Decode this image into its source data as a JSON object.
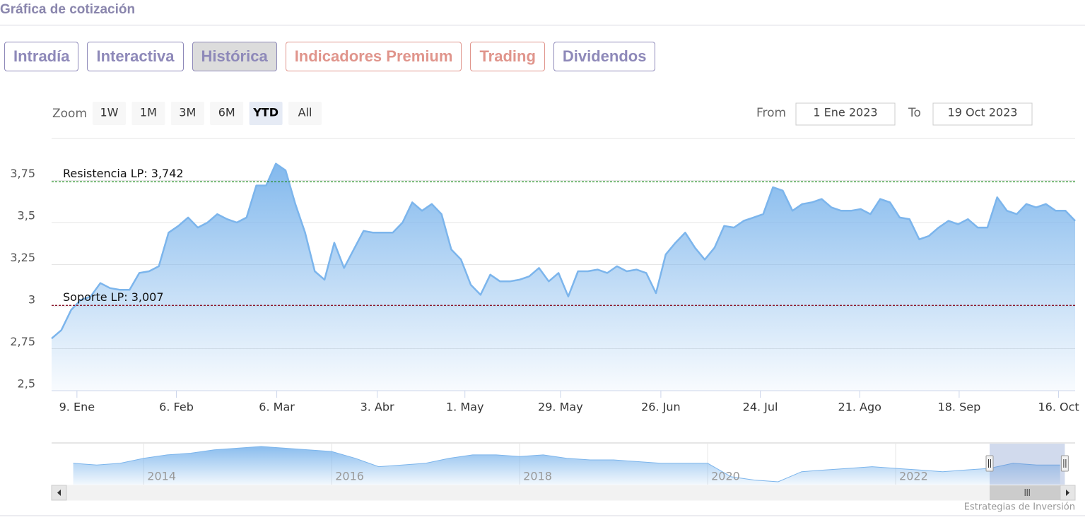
{
  "header": {
    "title": "Gráfica de cotización"
  },
  "tabs": [
    {
      "label": "Intradía",
      "color": "#8e89b9"
    },
    {
      "label": "Interactiva",
      "color": "#8e89b9"
    },
    {
      "label": "Histórica",
      "color": "#8e89b9"
    },
    {
      "label": "Indicadores Premium",
      "color": "#e0958c"
    },
    {
      "label": "Trading",
      "color": "#e0958c"
    },
    {
      "label": "Dividendos",
      "color": "#8e89b9"
    }
  ],
  "active_tab": 2,
  "zoom": {
    "label": "Zoom",
    "buttons": [
      "1W",
      "1M",
      "3M",
      "6M",
      "YTD",
      "All"
    ],
    "active": 4
  },
  "range": {
    "from_label": "From",
    "from": "1 Ene 2023",
    "to_label": "To",
    "to": "19 Oct 2023"
  },
  "chart_data": {
    "type": "area",
    "color": "#7cb5ec",
    "values": [
      2.81,
      2.86,
      2.98,
      3.04,
      3.06,
      3.14,
      3.11,
      3.1,
      3.1,
      3.2,
      3.21,
      3.24,
      3.44,
      3.48,
      3.53,
      3.47,
      3.5,
      3.55,
      3.52,
      3.5,
      3.53,
      3.72,
      3.72,
      3.85,
      3.81,
      3.61,
      3.44,
      3.21,
      3.16,
      3.38,
      3.23,
      3.34,
      3.45,
      3.44,
      3.44,
      3.44,
      3.5,
      3.62,
      3.57,
      3.61,
      3.55,
      3.34,
      3.28,
      3.13,
      3.07,
      3.19,
      3.15,
      3.15,
      3.16,
      3.18,
      3.23,
      3.15,
      3.2,
      3.06,
      3.21,
      3.21,
      3.22,
      3.2,
      3.24,
      3.21,
      3.22,
      3.2,
      3.08,
      3.31,
      3.38,
      3.44,
      3.35,
      3.28,
      3.35,
      3.48,
      3.47,
      3.51,
      3.53,
      3.55,
      3.71,
      3.69,
      3.57,
      3.61,
      3.62,
      3.64,
      3.59,
      3.57,
      3.57,
      3.58,
      3.55,
      3.64,
      3.62,
      3.53,
      3.52,
      3.4,
      3.42,
      3.47,
      3.51,
      3.49,
      3.52,
      3.47,
      3.47,
      3.65,
      3.57,
      3.55,
      3.61,
      3.59,
      3.61,
      3.57,
      3.57,
      3.51
    ],
    "xlim": [
      0,
      105
    ],
    "xticks": [
      {
        "value": 2.6,
        "label": "9. Ene"
      },
      {
        "value": 12.8,
        "label": "6. Feb"
      },
      {
        "value": 23.1,
        "label": "6. Mar"
      },
      {
        "value": 33.4,
        "label": "3. Abr"
      },
      {
        "value": 42.4,
        "label": "1. May"
      },
      {
        "value": 52.2,
        "label": "29. May"
      },
      {
        "value": 62.5,
        "label": "26. Jun"
      },
      {
        "value": 72.7,
        "label": "24. Jul"
      },
      {
        "value": 82.9,
        "label": "21. Ago"
      },
      {
        "value": 93.1,
        "label": "18. Sep"
      },
      {
        "value": 103.3,
        "label": "16. Oct"
      }
    ],
    "ylim": [
      2.5,
      4.0
    ],
    "yticks": [
      {
        "value": 2.5,
        "label": "2,5"
      },
      {
        "value": 2.75,
        "label": "2,75"
      },
      3,
      {
        "value": 3.25,
        "label": "3,25"
      },
      {
        "value": 3.5,
        "label": "3,5"
      },
      {
        "value": 3.75,
        "label": "3,75"
      }
    ],
    "grid": true,
    "plot_lines": [
      {
        "label": "Resistencia LP: 3,742",
        "value": 3.742,
        "color": "#1f8a1f"
      },
      {
        "label": "Soporte LP: 3,007",
        "value": 3.007,
        "color": "#8b1a2e"
      }
    ]
  },
  "navigator": {
    "type": "area",
    "color": "#7cb5ec",
    "x": [
      2013.25,
      2013.5,
      2013.75,
      2014,
      2014.25,
      2014.5,
      2014.75,
      2015,
      2015.25,
      2015.5,
      2015.75,
      2016,
      2016.25,
      2016.5,
      2016.75,
      2017,
      2017.25,
      2017.5,
      2017.75,
      2018,
      2018.25,
      2018.5,
      2018.75,
      2019,
      2019.25,
      2019.5,
      2019.75,
      2020,
      2020.25,
      2020.5,
      2020.75,
      2021,
      2021.25,
      2021.5,
      2021.75,
      2022,
      2022.25,
      2022.5,
      2022.75,
      2023,
      2023.25,
      2023.5,
      2023.75
    ],
    "values": [
      3.6,
      3.5,
      3.6,
      3.9,
      4.1,
      4.2,
      4.4,
      4.5,
      4.6,
      4.5,
      4.4,
      4.3,
      3.9,
      3.4,
      3.5,
      3.6,
      3.9,
      4.1,
      4.1,
      4.0,
      4.1,
      3.9,
      3.8,
      3.8,
      3.7,
      3.6,
      3.6,
      3.6,
      2.8,
      2.6,
      2.5,
      3.1,
      3.2,
      3.3,
      3.4,
      3.3,
      3.2,
      3.1,
      3.2,
      3.3,
      3.6,
      3.5,
      3.5
    ],
    "xlim": [
      2013.02,
      2023.91
    ],
    "xticks": [
      2014,
      2016,
      2018,
      2020,
      2022
    ],
    "range": [
      2023.0,
      2023.8
    ]
  },
  "credits": "Estrategias de Inversión"
}
